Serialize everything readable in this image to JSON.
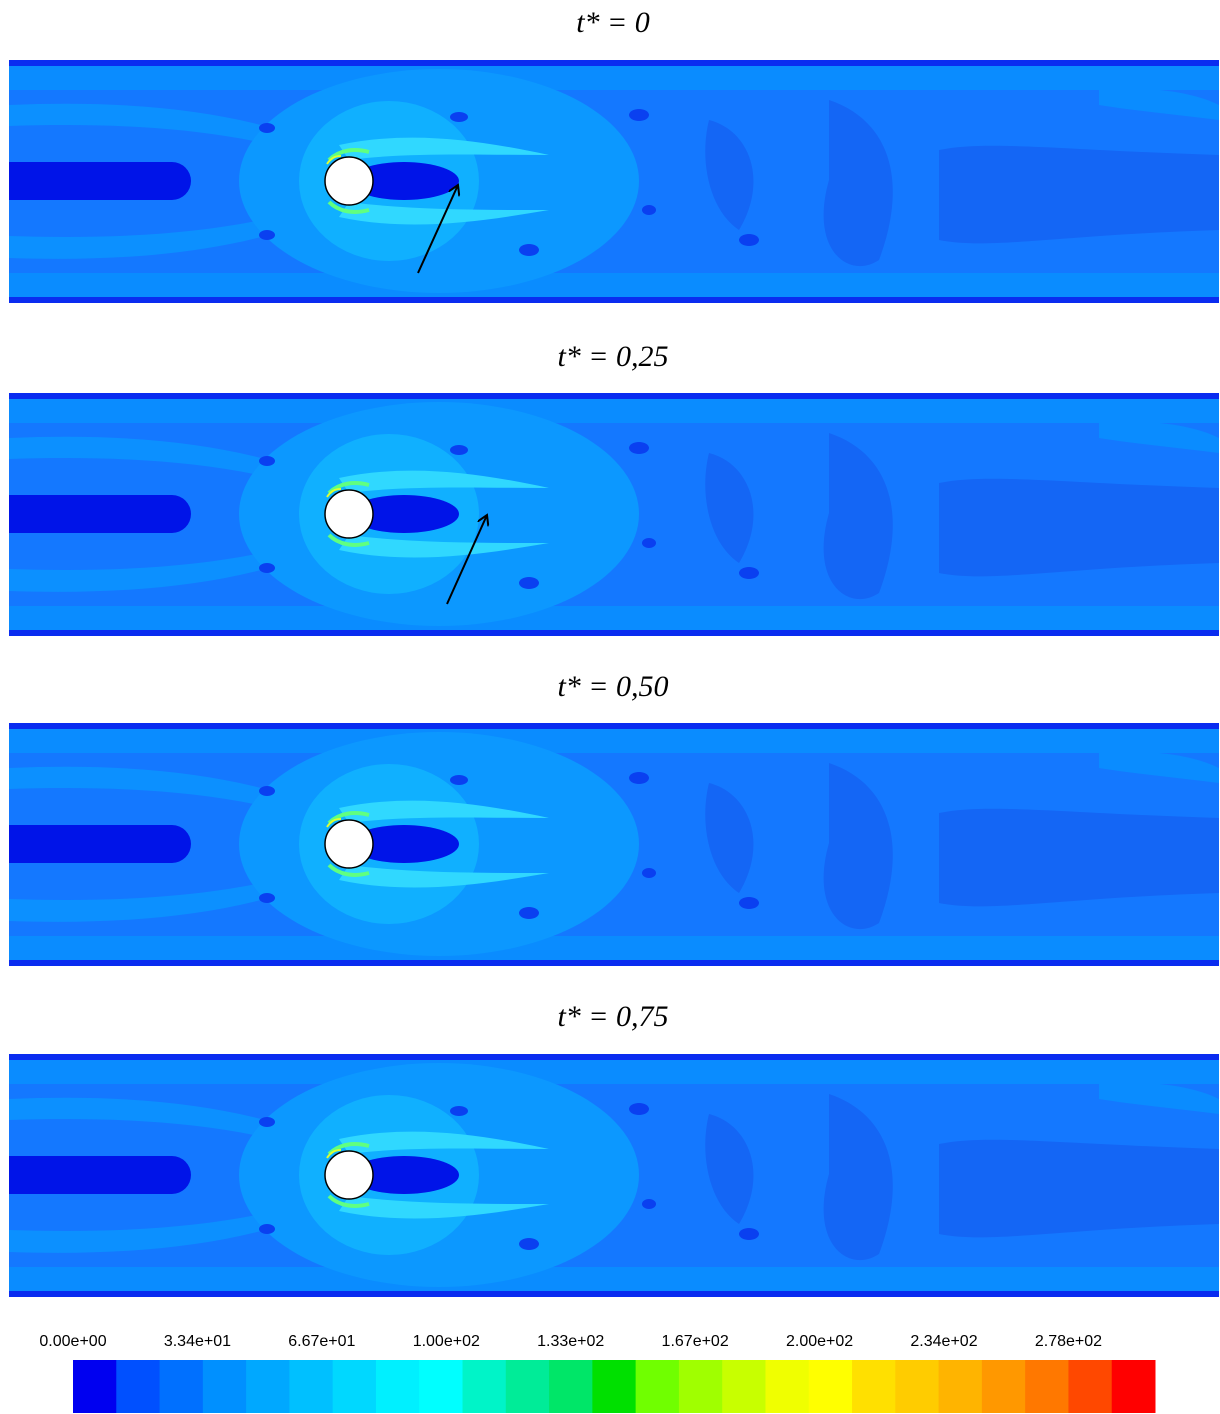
{
  "panels": [
    {
      "title": "t* = 0"
    },
    {
      "title": "t* = 0,25"
    },
    {
      "title": "t* = 0,50"
    },
    {
      "title": "t* = 0,75"
    }
  ],
  "colorbar": {
    "labels": [
      "0.00e+00",
      "3.34e+01",
      "6.67e+01",
      "1.00e+02",
      "1.33e+02",
      "1.67e+02",
      "2.00e+02",
      "2.34e+02",
      "2.78e+02"
    ],
    "colors": [
      "#0000f0",
      "#0050ff",
      "#0070ff",
      "#0090ff",
      "#00a8ff",
      "#00c0ff",
      "#00d8ff",
      "#00f0ff",
      "#00ffff",
      "#00f4c8",
      "#00ec98",
      "#00e668",
      "#00e000",
      "#70ff00",
      "#a0ff00",
      "#c8ff00",
      "#f0ff00",
      "#ffff00",
      "#ffe000",
      "#ffcc00",
      "#ffb400",
      "#ff9800",
      "#ff7800",
      "#ff4800",
      "#ff0000"
    ]
  }
}
